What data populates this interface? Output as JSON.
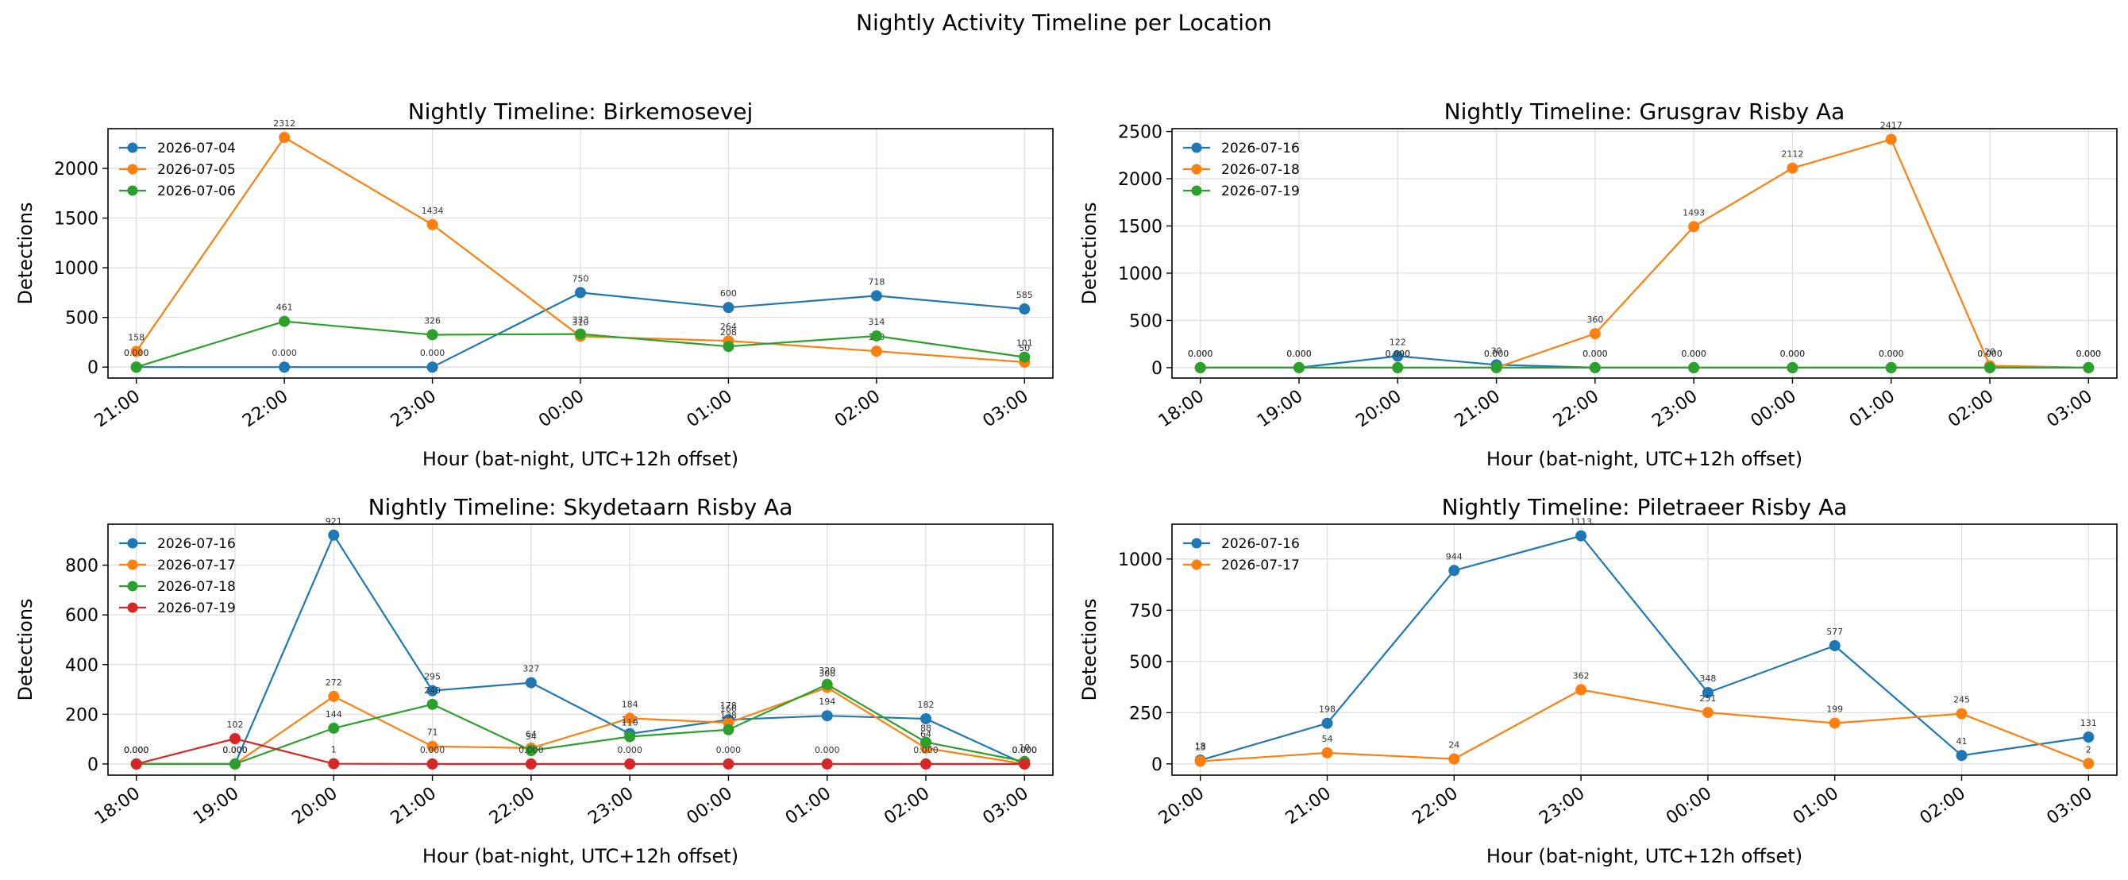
{
  "figure": {
    "suptitle": "Nightly Activity Timeline per Location"
  },
  "colors": {
    "series": [
      "#1f77b4",
      "#ff7f0e",
      "#2ca02c",
      "#d62728"
    ],
    "grid": "#e0e0e0",
    "axis": "#000000"
  },
  "chart_data": [
    {
      "type": "line",
      "title": "Nightly Timeline: Birkemosevej",
      "xlabel": "Hour (bat-night, UTC+12h offset)",
      "ylabel": "Detections",
      "categories": [
        "21:00",
        "22:00",
        "23:00",
        "00:00",
        "01:00",
        "02:00",
        "03:00"
      ],
      "ylim": [
        -110,
        2400
      ],
      "yticks": [
        0,
        500,
        1000,
        1500,
        2000
      ],
      "grid": true,
      "legend": "upper-left",
      "series": [
        {
          "name": "2026-07-04",
          "values": [
            0,
            0,
            0,
            750,
            600,
            718,
            585
          ],
          "labels": [
            "0.000",
            "0.000",
            "0.000",
            "750",
            "600",
            "718",
            "585"
          ]
        },
        {
          "name": "2026-07-05",
          "values": [
            158,
            2312,
            1434,
            310,
            264,
            160,
            50
          ],
          "labels": [
            "158",
            "2312",
            "1434",
            "310",
            "264",
            "160",
            "50"
          ]
        },
        {
          "name": "2026-07-06",
          "values": [
            0,
            461,
            326,
            333,
            208,
            314,
            101
          ],
          "labels": [
            "0.000",
            "461",
            "326",
            "333",
            "208",
            "314",
            "101"
          ]
        }
      ]
    },
    {
      "type": "line",
      "title": "Nightly Timeline: Grusgrav Risby Aa",
      "xlabel": "Hour (bat-night, UTC+12h offset)",
      "ylabel": "Detections",
      "categories": [
        "18:00",
        "19:00",
        "20:00",
        "21:00",
        "22:00",
        "23:00",
        "00:00",
        "01:00",
        "02:00",
        "03:00"
      ],
      "ylim": [
        -110,
        2530
      ],
      "yticks": [
        0,
        500,
        1000,
        1500,
        2000,
        2500
      ],
      "grid": true,
      "legend": "upper-left",
      "series": [
        {
          "name": "2026-07-16",
          "values": [
            0,
            0,
            122,
            30,
            0,
            0,
            0,
            0,
            0,
            0
          ],
          "labels": [
            "0.000",
            "0.000",
            "122",
            "30",
            "0.000",
            "0.000",
            "0.000",
            "0.000",
            "0.000",
            "0.000"
          ]
        },
        {
          "name": "2026-07-18",
          "values": [
            0,
            0,
            0,
            0,
            360,
            1493,
            2112,
            2417,
            20,
            0
          ],
          "labels": [
            "0.000",
            "0.000",
            "0.000",
            "0.000",
            "360",
            "1493",
            "2112",
            "2417",
            "20",
            "0.000"
          ]
        },
        {
          "name": "2026-07-19",
          "values": [
            0,
            0,
            0,
            0,
            0,
            0,
            0,
            0,
            0,
            0
          ],
          "labels": [
            "0.000",
            "0.000",
            "0.000",
            "0.000",
            "0.000",
            "0.000",
            "0.000",
            "0.000",
            "0.000",
            "0.000"
          ]
        }
      ]
    },
    {
      "type": "line",
      "title": "Nightly Timeline: Skydetaarn Risby Aa",
      "xlabel": "Hour (bat-night, UTC+12h offset)",
      "ylabel": "Detections",
      "categories": [
        "18:00",
        "19:00",
        "20:00",
        "21:00",
        "22:00",
        "23:00",
        "00:00",
        "01:00",
        "02:00",
        "03:00"
      ],
      "ylim": [
        -45,
        965
      ],
      "yticks": [
        0,
        200,
        400,
        600,
        800
      ],
      "grid": true,
      "legend": "upper-left",
      "series": [
        {
          "name": "2026-07-16",
          "values": [
            0,
            0,
            921,
            295,
            327,
            122,
            178,
            194,
            182,
            0
          ],
          "labels": [
            "0.000",
            "0.000",
            "921",
            "295",
            "327",
            "122",
            "178",
            "194",
            "182",
            "0.000"
          ]
        },
        {
          "name": "2026-07-17",
          "values": [
            0,
            0,
            272,
            71,
            64,
            184,
            166,
            308,
            64,
            0
          ],
          "labels": [
            "0.000",
            "0.000",
            "272",
            "71",
            "64",
            "184",
            "166",
            "308",
            "64",
            "0.000"
          ]
        },
        {
          "name": "2026-07-18",
          "values": [
            0,
            0,
            144,
            240,
            54,
            110,
            138,
            320,
            88,
            10
          ],
          "labels": [
            "0.000",
            "0.000",
            "144",
            "240",
            "54",
            "110",
            "138",
            "320",
            "88",
            "10"
          ]
        },
        {
          "name": "2026-07-19",
          "values": [
            0,
            102,
            1,
            0,
            0,
            0,
            0,
            0,
            0,
            0
          ],
          "labels": [
            "0.000",
            "102",
            "1",
            "0.000",
            "0.000",
            "0.000",
            "0.000",
            "0.000",
            "0.000",
            "0.000"
          ]
        }
      ]
    },
    {
      "type": "line",
      "title": "Nightly Timeline: Piletraeer Risby Aa",
      "xlabel": "Hour (bat-night, UTC+12h offset)",
      "ylabel": "Detections",
      "categories": [
        "20:00",
        "21:00",
        "22:00",
        "23:00",
        "00:00",
        "01:00",
        "02:00",
        "03:00"
      ],
      "ylim": [
        -55,
        1170
      ],
      "yticks": [
        0,
        250,
        500,
        750,
        1000
      ],
      "grid": true,
      "legend": "upper-left",
      "series": [
        {
          "name": "2026-07-16",
          "values": [
            18,
            198,
            944,
            1113,
            348,
            577,
            41,
            131
          ],
          "labels": [
            "18",
            "198",
            "944",
            "1113",
            "348",
            "577",
            "41",
            "131"
          ]
        },
        {
          "name": "2026-07-17",
          "values": [
            13,
            54,
            24,
            362,
            251,
            199,
            245,
            2
          ],
          "labels": [
            "13",
            "54",
            "24",
            "362",
            "251",
            "199",
            "245",
            "2"
          ]
        }
      ]
    }
  ]
}
